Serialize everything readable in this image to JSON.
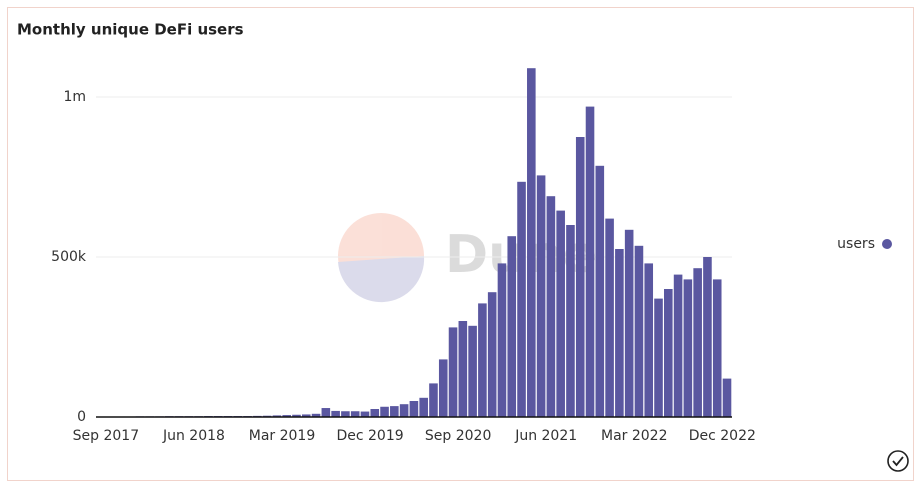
{
  "chart_data": {
    "type": "bar",
    "title": "Monthly unique DeFi users",
    "watermark": "Dune",
    "categories": [
      "Sep 2017",
      null,
      null,
      null,
      null,
      null,
      null,
      null,
      null,
      "Jun 2018",
      null,
      null,
      null,
      null,
      null,
      null,
      null,
      null,
      "Mar 2019",
      null,
      null,
      null,
      null,
      null,
      null,
      null,
      null,
      "Dec 2019",
      null,
      null,
      null,
      null,
      null,
      null,
      null,
      null,
      "Sep 2020",
      null,
      null,
      null,
      null,
      null,
      null,
      null,
      null,
      "Jun 2021",
      null,
      null,
      null,
      null,
      null,
      null,
      null,
      null,
      "Mar 2022",
      null,
      null,
      null,
      null,
      null,
      null,
      null,
      null,
      "Dec 2022",
      null
    ],
    "series": [
      {
        "name": "users",
        "color": "#5a57a0",
        "values": [
          1000,
          1000,
          1500,
          1500,
          2000,
          2000,
          2000,
          2500,
          2500,
          2500,
          2500,
          3000,
          3000,
          3000,
          3000,
          3000,
          3500,
          4000,
          5000,
          6000,
          7000,
          8000,
          10000,
          28000,
          19000,
          18000,
          18000,
          17000,
          25000,
          32000,
          34000,
          40000,
          50000,
          60000,
          105000,
          180000,
          280000,
          300000,
          285000,
          355000,
          390000,
          480000,
          565000,
          735000,
          1090000,
          755000,
          690000,
          645000,
          600000,
          875000,
          970000,
          785000,
          620000,
          525000,
          585000,
          535000,
          480000,
          370000,
          400000,
          445000,
          430000,
          465000,
          500000,
          430000,
          120000
        ]
      }
    ],
    "ylim": [
      0,
      1100000
    ],
    "yticks": [
      0,
      {
        "value": 500000,
        "label": "500k"
      },
      {
        "value": 1000000,
        "label": "1m"
      }
    ],
    "grid": true,
    "legend": "right"
  }
}
